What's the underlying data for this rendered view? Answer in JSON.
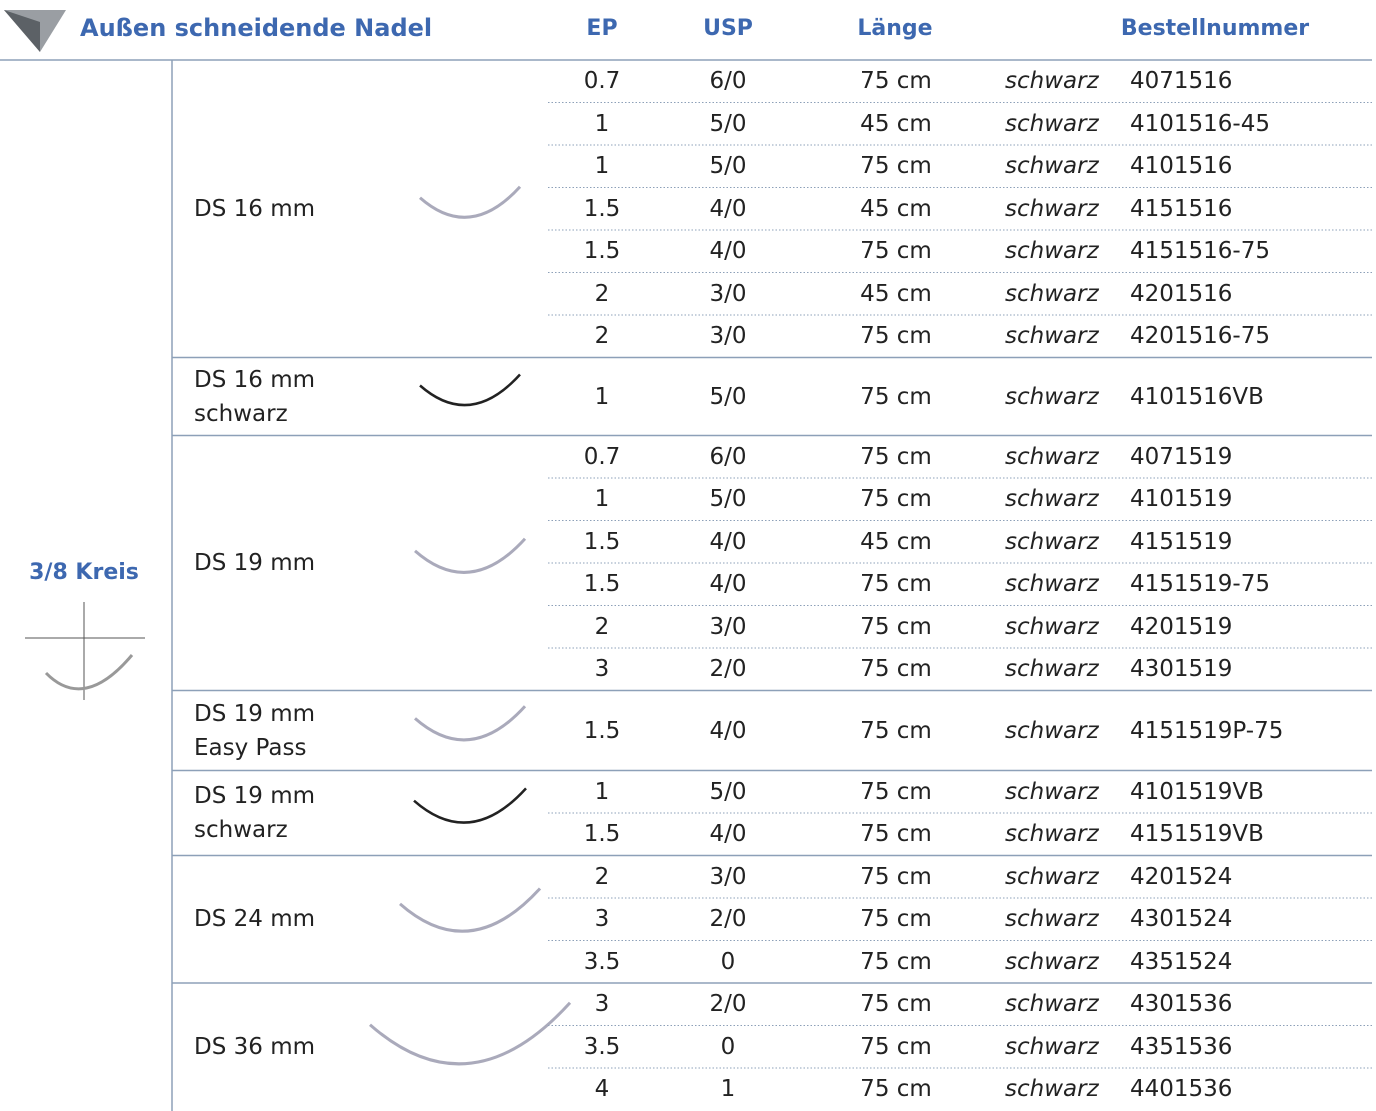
{
  "header": {
    "title": "Außen schneidende Nadel",
    "columns": [
      "EP",
      "USP",
      "Länge",
      "Bestellnummer"
    ]
  },
  "table": {
    "side_label": "3/8 Kreis",
    "groups": [
      {
        "name": [
          "DS 16 mm"
        ],
        "rows": [
          [
            "0.7",
            "6/0",
            "75 cm",
            "schwarz",
            "4071516"
          ],
          [
            "1",
            "5/0",
            "45 cm",
            "schwarz",
            "4101516-45"
          ],
          [
            "1",
            "5/0",
            "75 cm",
            "schwarz",
            "4101516"
          ],
          [
            "1.5",
            "4/0",
            "45 cm",
            "schwarz",
            "4151516"
          ],
          [
            "1.5",
            "4/0",
            "75 cm",
            "schwarz",
            "4151516-75"
          ],
          [
            "2",
            "3/0",
            "45 cm",
            "schwarz",
            "4201516"
          ],
          [
            "2",
            "3/0",
            "75 cm",
            "schwarz",
            "4201516-75"
          ]
        ]
      },
      {
        "name": [
          "DS 16 mm",
          "schwarz"
        ],
        "rows": [
          [
            "1",
            "5/0",
            "75 cm",
            "schwarz",
            "4101516VB"
          ]
        ]
      },
      {
        "name": [
          "DS 19 mm"
        ],
        "rows": [
          [
            "0.7",
            "6/0",
            "75 cm",
            "schwarz",
            "4071519"
          ],
          [
            "1",
            "5/0",
            "75 cm",
            "schwarz",
            "4101519"
          ],
          [
            "1.5",
            "4/0",
            "45 cm",
            "schwarz",
            "4151519"
          ],
          [
            "1.5",
            "4/0",
            "75 cm",
            "schwarz",
            "4151519-75"
          ],
          [
            "2",
            "3/0",
            "75 cm",
            "schwarz",
            "4201519"
          ],
          [
            "3",
            "2/0",
            "75 cm",
            "schwarz",
            "4301519"
          ]
        ]
      },
      {
        "name": [
          "DS 19 mm",
          "Easy Pass"
        ],
        "rows": [
          [
            "1.5",
            "4/0",
            "75 cm",
            "schwarz",
            "4151519P-75"
          ]
        ]
      },
      {
        "name": [
          "DS 19 mm",
          "schwarz"
        ],
        "rows": [
          [
            "1",
            "5/0",
            "75 cm",
            "schwarz",
            "4101519VB"
          ],
          [
            "1.5",
            "4/0",
            "75 cm",
            "schwarz",
            "4151519VB"
          ]
        ]
      },
      {
        "name": [
          "DS 24 mm"
        ],
        "rows": [
          [
            "2",
            "3/0",
            "75 cm",
            "schwarz",
            "4201524"
          ],
          [
            "3",
            "2/0",
            "75 cm",
            "schwarz",
            "4301524"
          ],
          [
            "3.5",
            "0",
            "75 cm",
            "schwarz",
            "4351524"
          ]
        ]
      },
      {
        "name": [
          "DS 36 mm"
        ],
        "rows": [
          [
            "3",
            "2/0",
            "75 cm",
            "schwarz",
            "4301536"
          ],
          [
            "3.5",
            "0",
            "75 cm",
            "schwarz",
            "4351536"
          ],
          [
            "4",
            "1",
            "75 cm",
            "schwarz",
            "4401536"
          ]
        ]
      }
    ]
  }
}
